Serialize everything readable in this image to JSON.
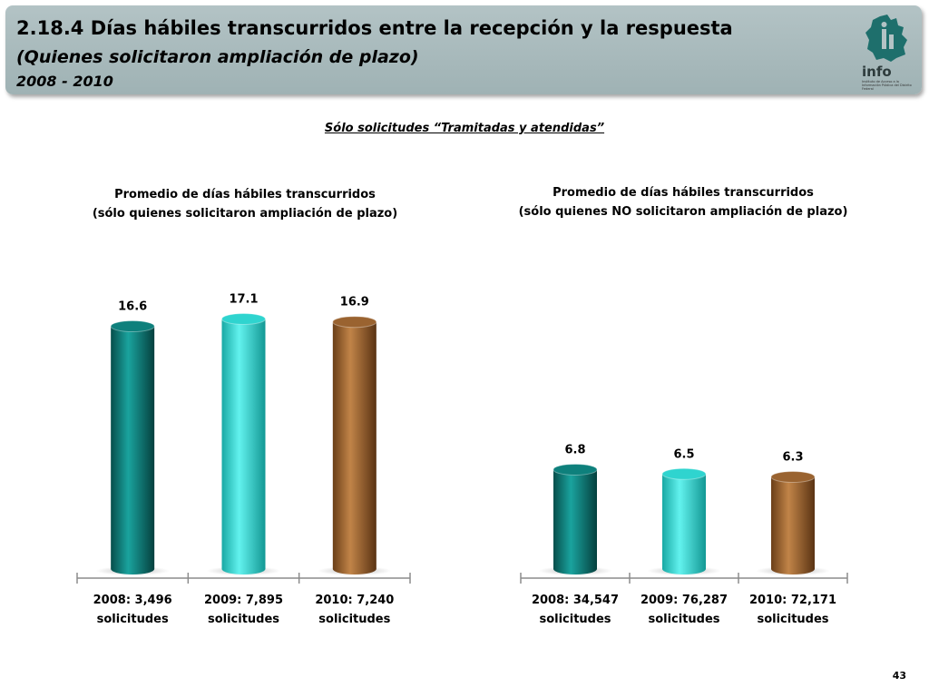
{
  "header": {
    "title": "2.18.4 Días hábiles transcurridos entre la recepción y la respuesta",
    "subtitle": "(Quienes solicitaron ampliación de plazo)",
    "years": "2008 - 2010",
    "logo_text": "info",
    "logo_small": "Instituto de Acceso a la Información Pública del Distrito Federal"
  },
  "filter_note": "Sólo solicitudes “Tramitadas y atendidas”",
  "page_number": "43",
  "colors": {
    "teal": "#0e807c",
    "cyan": "#2fd4cf",
    "brown": "#9a6330"
  },
  "chart_data": [
    {
      "type": "bar",
      "title_line1": "Promedio de días hábiles transcurridos",
      "title_line2": "(sólo quienes solicitaron ampliación de plazo)",
      "categories": [
        [
          "2008: 3,496",
          "solicitudes"
        ],
        [
          "2009: 7,895",
          "solicitudes"
        ],
        [
          "2010: 7,240",
          "solicitudes"
        ]
      ],
      "values": [
        16.6,
        17.1,
        16.9
      ],
      "ylim": [
        0,
        18
      ]
    },
    {
      "type": "bar",
      "title_line1": "Promedio de días hábiles transcurridos",
      "title_line2": "(sólo quienes NO solicitaron ampliación de plazo)",
      "categories": [
        [
          "2008: 34,547",
          "solicitudes"
        ],
        [
          "2009: 76,287",
          "solicitudes"
        ],
        [
          "2010: 72,171",
          "solicitudes"
        ]
      ],
      "values": [
        6.8,
        6.5,
        6.3
      ],
      "ylim": [
        0,
        18
      ]
    }
  ]
}
